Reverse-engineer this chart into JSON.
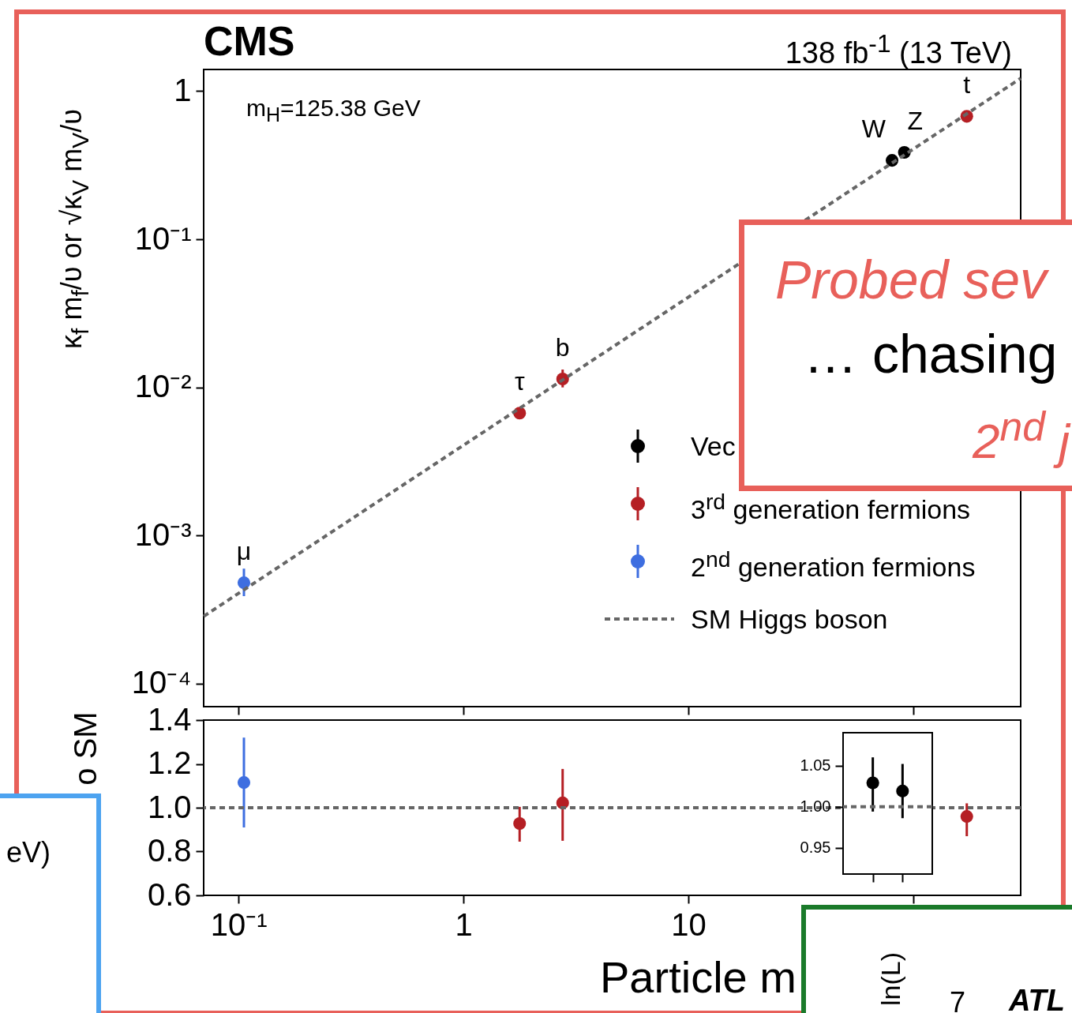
{
  "chart_data": [
    {
      "type": "scatter",
      "title": "CMS",
      "subtitle": "138 fb$^{-1}$ (13 TeV)",
      "ylabel": "κ$_{f}$ m$_{f}$/υ  or  √κ$_{V}$ m$_{V}$/υ",
      "log": "xy",
      "xlim": [
        0.07,
        300
      ],
      "ylim": [
        7e-05,
        1.4
      ],
      "xticks": [
        {
          "value": 0.1,
          "label": null
        },
        {
          "value": 1,
          "label": null
        },
        {
          "value": 10,
          "label": null
        },
        {
          "value": 100,
          "label": null
        }
      ],
      "yticks": [
        {
          "value": 0.0001,
          "label": "10⁻⁴"
        },
        {
          "value": 0.001,
          "label": "10⁻³"
        },
        {
          "value": 0.01,
          "label": "10⁻²"
        },
        {
          "value": 0.1,
          "label": "10⁻¹"
        },
        1
      ],
      "tick_labels": "y",
      "grid": false,
      "legend": "right",
      "marker": "circle",
      "series": [
        {
          "name": "Vec",
          "color": "#000000",
          "x": [
            80.4,
            91.19
          ],
          "values": [
            0.341,
            0.386
          ]
        },
        {
          "name": "3$^{rd}$ generation fermions",
          "color": "#b51f24",
          "x": [
            1.777,
            2.76,
            172.8
          ],
          "values": [
            0.0067,
            0.0114,
            0.676
          ],
          "errors": [
            null,
            [
              0.01,
              0.0132
            ],
            null
          ]
        },
        {
          "name": "2$^{nd}$ generation fermions",
          "color": "#3e6ee0",
          "x": [
            0.1057
          ],
          "values": [
            0.00048
          ],
          "errors": [
            [
              0.00039,
              0.000598
            ]
          ]
        },
        {
          "name": "SM Higgs boson",
          "type": "line",
          "color": "#666666",
          "line_style": "dashed",
          "marker": "none",
          "x": [
            0.07,
            300
          ],
          "values": [
            0.000285,
            1.22
          ]
        }
      ],
      "annotations": [
        {
          "text": "μ",
          "x": 0.1057,
          "y": 0.00048
        },
        {
          "text": "τ",
          "x": 1.777,
          "y": 0.0067
        },
        {
          "text": "b",
          "x": 2.76,
          "y": 0.0114
        },
        {
          "text": "W",
          "x": 80.4,
          "y": 0.341
        },
        {
          "text": "Z",
          "x": 91.19,
          "y": 0.386
        },
        {
          "text": "t",
          "x": 172.8,
          "y": 0.676
        },
        "m$_{H}$=125.38 GeV",
        "Probed sev",
        "… chasing",
        "2$^{nd}$ j",
        "eV)",
        "ln(L)",
        "7",
        "ATL"
      ]
    },
    {
      "type": "scatter",
      "xlabel": "Particle m",
      "ylabel": "o SM",
      "log": "x",
      "xlim": [
        0.07,
        300
      ],
      "ylim": [
        0.6,
        1.4
      ],
      "xticks": [
        {
          "value": 0.1,
          "label": "10⁻¹"
        },
        1,
        10,
        {
          "value": 100,
          "label": null
        }
      ],
      "yticks": [
        0.6,
        0.8,
        {
          "value": 1,
          "label": "1.0"
        },
        1.2,
        1.4
      ],
      "grid": false,
      "marker": "circle",
      "series": [
        {
          "color": "#b51f24",
          "x": [
            1.777,
            2.76,
            172.8
          ],
          "values": [
            0.928,
            1.022,
            0.96
          ],
          "errors": [
            [
              0.845,
              1.004
            ],
            [
              0.849,
              1.177
            ],
            [
              0.87,
              1.02
            ]
          ]
        },
        {
          "color": "#3e6ee0",
          "x": [
            0.1057
          ],
          "values": [
            1.115
          ],
          "errors": [
            [
              0.91,
              1.32
            ]
          ]
        }
      ],
      "ref_lines": [
        {
          "axis": "y",
          "value": 1,
          "color": "#666666",
          "line_style": "dashed"
        }
      ]
    },
    {
      "type": "scatter",
      "categories": [
        null,
        null
      ],
      "ylim": [
        0.918,
        1.09
      ],
      "yticks": [
        {
          "value": 0.95,
          "label": "0.95"
        },
        {
          "value": 1,
          "label": "1.00"
        },
        {
          "value": 1.05,
          "label": "1.05"
        }
      ],
      "tick_labels": "y",
      "grid": false,
      "marker": "circle",
      "series": [
        {
          "color": "#000000",
          "values": [
            1.029,
            1.019
          ],
          "errors": [
            [
              0.994,
              1.06
            ],
            [
              0.986,
              1.052
            ]
          ]
        }
      ],
      "ref_lines": [
        {
          "axis": "y",
          "value": 1,
          "color": "#666666",
          "line_style": "dashed"
        }
      ]
    }
  ]
}
